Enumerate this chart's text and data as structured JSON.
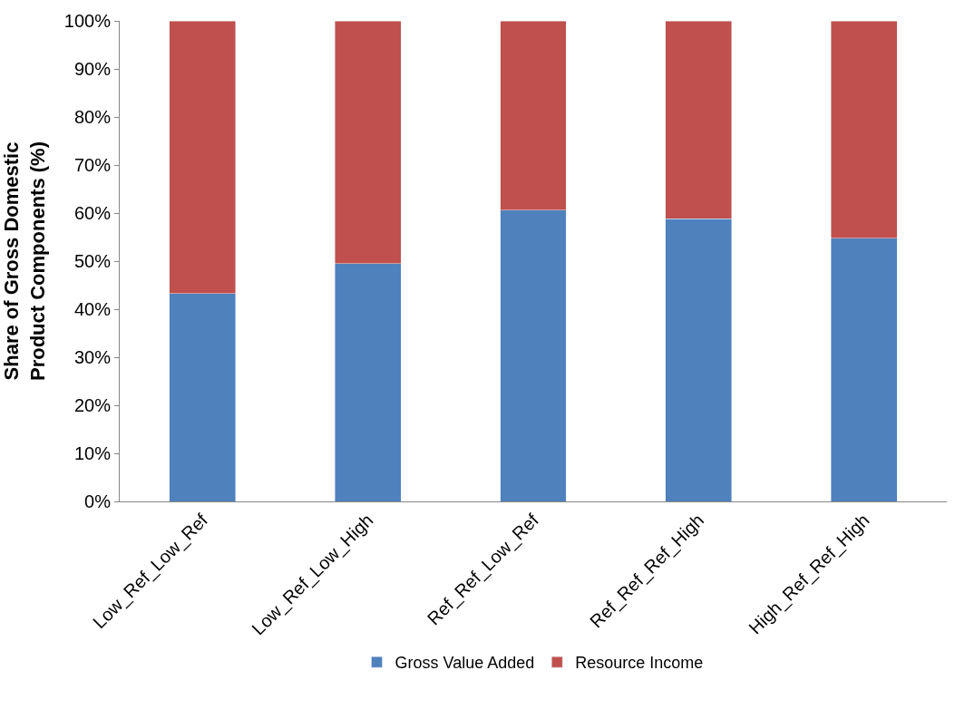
{
  "chart_data": {
    "type": "bar",
    "stacked": true,
    "ylabel": "Share of Gross Domestic Product Components (%)",
    "categories": [
      "Low_Ref_Low_Ref",
      "Low_Ref_Low_High",
      "Ref_Ref_Low_Ref",
      "Ref_Ref_Ref_High",
      "High_Ref_Ref_High"
    ],
    "series": [
      {
        "name": "Gross Value Added",
        "color": "#4f81bd",
        "values": [
          43.3,
          49.5,
          60.6,
          58.8,
          54.8
        ]
      },
      {
        "name": "Resource Income",
        "color": "#c0504d",
        "values": [
          56.7,
          50.5,
          39.4,
          41.2,
          45.2
        ]
      }
    ],
    "ylim": [
      0,
      100
    ],
    "yticks": [
      {
        "value": 0,
        "label": "0%"
      },
      {
        "value": 10,
        "label": "10%"
      },
      {
        "value": 20,
        "label": "20%"
      },
      {
        "value": 30,
        "label": "30%"
      },
      {
        "value": 40,
        "label": "40%"
      },
      {
        "value": 50,
        "label": "50%"
      },
      {
        "value": 60,
        "label": "60%"
      },
      {
        "value": 70,
        "label": "70%"
      },
      {
        "value": 80,
        "label": "80%"
      },
      {
        "value": 90,
        "label": "90%"
      },
      {
        "value": 100,
        "label": "100%"
      }
    ],
    "legend": "bottom"
  }
}
